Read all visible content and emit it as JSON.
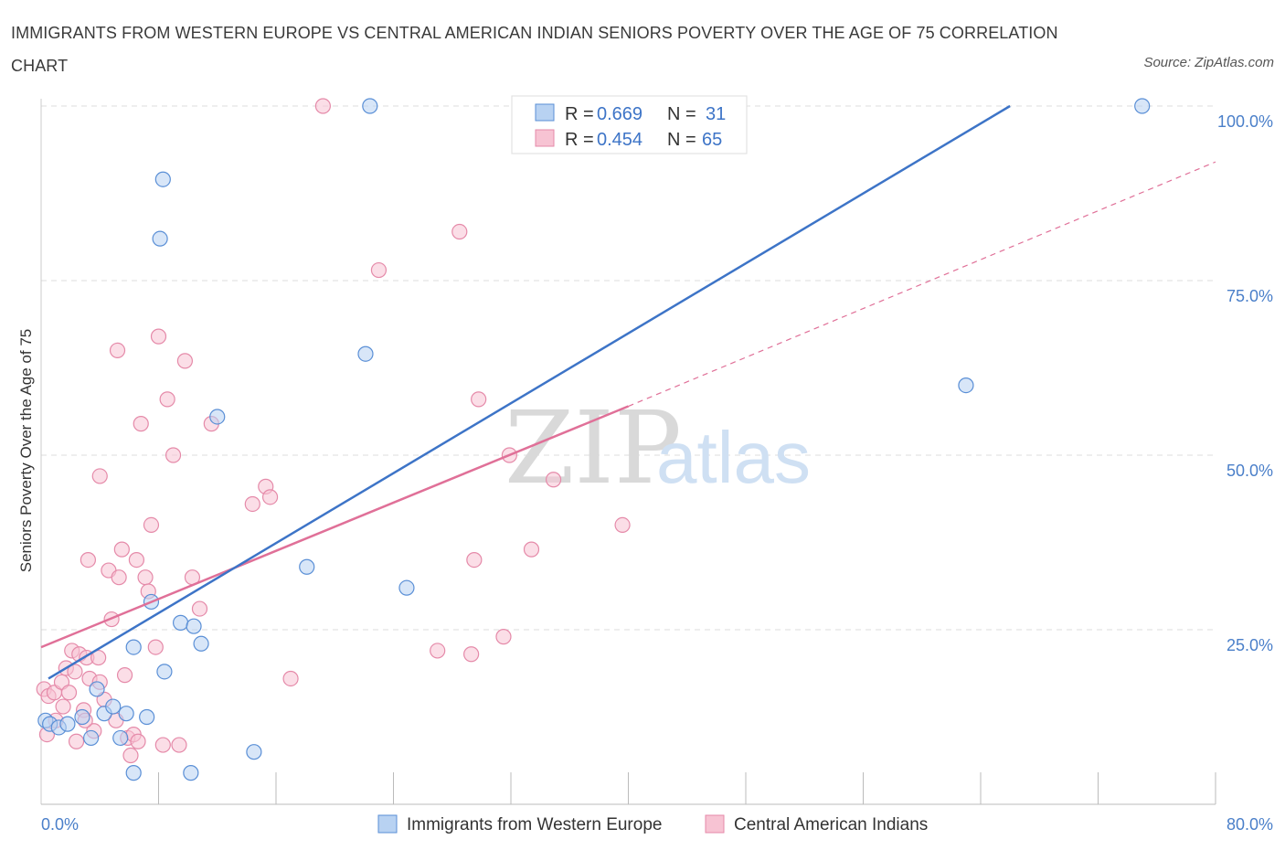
{
  "title": "IMMIGRANTS FROM WESTERN EUROPE VS CENTRAL AMERICAN INDIAN SENIORS POVERTY OVER THE AGE OF 75 CORRELATION CHART",
  "source": "Source: ZipAtlas.com",
  "watermark": {
    "zip": "ZIP",
    "atlas": "atlas"
  },
  "colors": {
    "blue": "#3d74c7",
    "blue_fill": "#b8d2f2",
    "pink": "#e07098",
    "pink_fill": "#f7c3d3",
    "grid": "#dddddd"
  },
  "legend": {
    "series1": {
      "r_label": "R =",
      "r_value": "0.669",
      "n_label": "N =",
      "n_value": "31"
    },
    "series2": {
      "r_label": "R =",
      "r_value": "0.454",
      "n_label": "N =",
      "n_value": "65"
    }
  },
  "chart_data": {
    "type": "scatter",
    "title": "IMMIGRANTS FROM WESTERN EUROPE VS CENTRAL AMERICAN INDIAN SENIORS POVERTY OVER THE AGE OF 75 CORRELATION CHART",
    "xlabel": "",
    "ylabel": "Seniors Poverty Over the Age of 75",
    "xlim": [
      0,
      80
    ],
    "ylim": [
      0,
      100
    ],
    "x_tick_labels": [
      "0.0%",
      "80.0%"
    ],
    "y_tick_labels": [
      "25.0%",
      "50.0%",
      "75.0%",
      "100.0%"
    ],
    "y_ticks": [
      25,
      50,
      75,
      100
    ],
    "grid": true,
    "legend_position": "top-center",
    "series": [
      {
        "name": "Immigrants from Western Europe",
        "color": "#3d74c7",
        "trend": {
          "x": [
            0.5,
            66
          ],
          "y": [
            18,
            100
          ]
        },
        "points": [
          [
            0.3,
            12
          ],
          [
            0.6,
            11.5
          ],
          [
            1.2,
            11
          ],
          [
            1.8,
            11.5
          ],
          [
            2.8,
            12.5
          ],
          [
            3.4,
            9.5
          ],
          [
            3.8,
            16.5
          ],
          [
            4.3,
            13
          ],
          [
            4.9,
            14
          ],
          [
            5.4,
            9.5
          ],
          [
            5.8,
            13
          ],
          [
            6.3,
            4.5
          ],
          [
            7.2,
            12.5
          ],
          [
            6.3,
            22.5
          ],
          [
            8.4,
            19
          ],
          [
            9.5,
            26
          ],
          [
            10.2,
            4.5
          ],
          [
            10.4,
            25.5
          ],
          [
            10.9,
            23
          ],
          [
            8.1,
            81
          ],
          [
            8.3,
            89.5
          ],
          [
            12,
            55.5
          ],
          [
            14.5,
            7.5
          ],
          [
            18.1,
            34
          ],
          [
            22.1,
            64.5
          ],
          [
            22.4,
            100
          ],
          [
            24.9,
            31
          ],
          [
            63,
            60
          ],
          [
            75,
            100
          ],
          [
            40,
            100
          ],
          [
            7.5,
            29
          ]
        ]
      },
      {
        "name": "Central American Indians",
        "color": "#e07098",
        "trend": {
          "x": [
            0,
            40
          ],
          "y": [
            22.5,
            57
          ]
        },
        "trend_dashed": {
          "x": [
            40,
            80
          ],
          "y": [
            57,
            92
          ]
        },
        "points": [
          [
            0.2,
            16.5
          ],
          [
            0.5,
            15.5
          ],
          [
            0.9,
            16
          ],
          [
            1.4,
            17.5
          ],
          [
            1.7,
            19.5
          ],
          [
            1.9,
            16
          ],
          [
            2.1,
            22
          ],
          [
            2.3,
            19
          ],
          [
            2.6,
            21.5
          ],
          [
            2.9,
            13.5
          ],
          [
            3.1,
            21
          ],
          [
            3.3,
            18
          ],
          [
            3.6,
            10.5
          ],
          [
            3.9,
            21
          ],
          [
            4.0,
            17.5
          ],
          [
            4.3,
            15
          ],
          [
            4.6,
            33.5
          ],
          [
            4.8,
            26.5
          ],
          [
            5.1,
            12
          ],
          [
            5.3,
            32.5
          ],
          [
            5.5,
            36.5
          ],
          [
            5.7,
            18.5
          ],
          [
            5.9,
            9.5
          ],
          [
            6.1,
            7
          ],
          [
            6.3,
            10
          ],
          [
            6.5,
            35
          ],
          [
            6.8,
            54.5
          ],
          [
            7.1,
            32.5
          ],
          [
            7.3,
            30.5
          ],
          [
            7.5,
            40
          ],
          [
            7.8,
            22.5
          ],
          [
            8.0,
            67
          ],
          [
            8.3,
            8.5
          ],
          [
            8.6,
            58
          ],
          [
            9.0,
            50
          ],
          [
            9.4,
            8.5
          ],
          [
            9.8,
            63.5
          ],
          [
            10.3,
            32.5
          ],
          [
            10.8,
            28
          ],
          [
            11.6,
            54.5
          ],
          [
            14.4,
            43
          ],
          [
            15.3,
            45.5
          ],
          [
            15.6,
            44
          ],
          [
            17,
            18
          ],
          [
            3.2,
            35
          ],
          [
            4.0,
            47
          ],
          [
            5.2,
            65
          ],
          [
            19.2,
            100
          ],
          [
            23,
            76.5
          ],
          [
            27,
            22
          ],
          [
            28.5,
            82
          ],
          [
            29.3,
            21.5
          ],
          [
            29.5,
            35
          ],
          [
            29.8,
            58
          ],
          [
            31.9,
            50
          ],
          [
            31.5,
            24
          ],
          [
            33.4,
            36.5
          ],
          [
            34.9,
            46.5
          ],
          [
            39.6,
            40
          ],
          [
            1.0,
            12
          ],
          [
            1.5,
            14
          ],
          [
            2.4,
            9
          ],
          [
            3.0,
            12
          ],
          [
            6.6,
            9
          ],
          [
            0.4,
            10
          ]
        ]
      }
    ]
  }
}
